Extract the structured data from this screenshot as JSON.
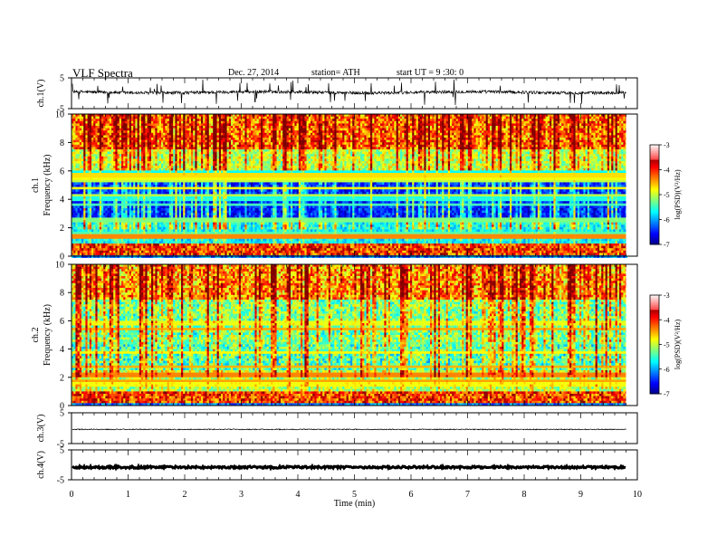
{
  "header": {
    "title": "VLF  Spectra",
    "date": "Dec. 27, 2014",
    "station": "station= ATH",
    "start": "start  UT =   9  :30: 0"
  },
  "chart_data": [
    {
      "type": "line",
      "panel": "ch1-waveform",
      "ylabel": "ch.1(V)",
      "ylim": [
        -5,
        5
      ],
      "yticks": [
        5,
        -5
      ],
      "xlim": [
        0,
        10
      ],
      "x_end": 9.8,
      "series": [
        {
          "values_description_free": true,
          "baseline": 0.3,
          "noise_amplitude": 1.0,
          "spikes": true
        }
      ]
    },
    {
      "type": "heatmap",
      "panel": "ch1-spectrogram",
      "ylabel": "ch.1\nFrequency (kHz)",
      "ylim": [
        0,
        10
      ],
      "yticks": [
        0,
        2,
        4,
        6,
        8,
        10
      ],
      "xlim": [
        0,
        10
      ],
      "x_end": 9.8,
      "colorbar": {
        "label": "log(PSD)(V²/Hz)",
        "range": [
          -7,
          -3
        ],
        "ticks": [
          -3,
          -4,
          -5,
          -6,
          -7
        ]
      }
    },
    {
      "type": "heatmap",
      "panel": "ch2-spectrogram",
      "ylabel": "ch.2\nFrequency (kHz)",
      "ylim": [
        0,
        10
      ],
      "yticks": [
        0,
        2,
        4,
        6,
        8,
        10
      ],
      "xlim": [
        0,
        10
      ],
      "x_end": 9.8,
      "colorbar": {
        "label": "log(PSD)(V²/Hz)",
        "range": [
          -7,
          -3
        ],
        "ticks": [
          -3,
          -4,
          -5,
          -6,
          -7
        ]
      }
    },
    {
      "type": "line",
      "panel": "ch3-waveform",
      "ylabel": "ch.3(V)",
      "ylim": [
        -5,
        5
      ],
      "yticks": [
        5,
        -5
      ],
      "xlim": [
        0,
        10
      ],
      "x_end": 9.8,
      "series": [
        {
          "baseline": -0.4,
          "noise_amplitude": 0.15
        }
      ]
    },
    {
      "type": "line",
      "panel": "ch4-waveform",
      "ylabel": "ch.4(V)",
      "ylim": [
        -5,
        5
      ],
      "yticks": [
        5,
        -5
      ],
      "xlim": [
        0,
        10
      ],
      "x_end": 9.8,
      "xlabel": "Time  (min)",
      "xticks": [
        0,
        1,
        2,
        3,
        4,
        5,
        6,
        7,
        8,
        9,
        10
      ],
      "series": [
        {
          "baseline": -0.8,
          "noise_amplitude": 0.35
        }
      ]
    }
  ]
}
